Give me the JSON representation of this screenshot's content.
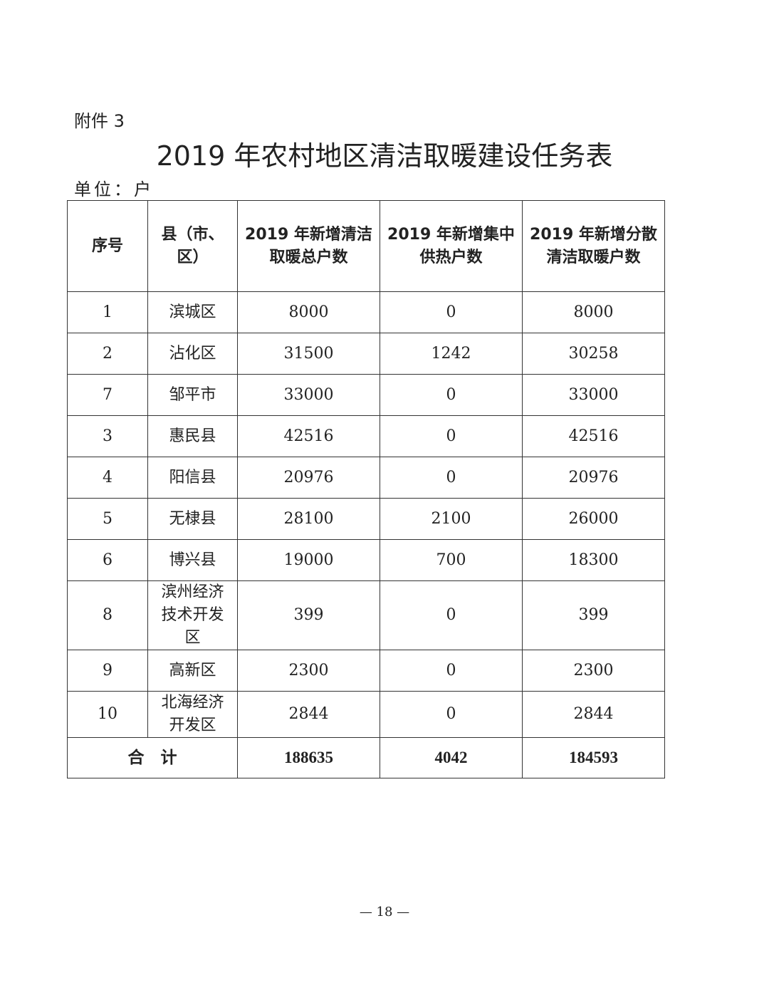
{
  "attachment": "附件 3",
  "title": "2019 年农村地区清洁取暖建设任务表",
  "unit": "单位：户",
  "table": {
    "headers": [
      "序号",
      "县（市、区）",
      "2019 年新增清洁取暖总户数",
      "2019 年新增集中供热户数",
      "2019 年新增分散清洁取暖户数"
    ],
    "rows": [
      [
        "1",
        "滨城区",
        "8000",
        "0",
        "8000"
      ],
      [
        "2",
        "沾化区",
        "31500",
        "1242",
        "30258"
      ],
      [
        "7",
        "邹平市",
        "33000",
        "0",
        "33000"
      ],
      [
        "3",
        "惠民县",
        "42516",
        "0",
        "42516"
      ],
      [
        "4",
        "阳信县",
        "20976",
        "0",
        "20976"
      ],
      [
        "5",
        "无棣县",
        "28100",
        "2100",
        "26000"
      ],
      [
        "6",
        "博兴县",
        "19000",
        "700",
        "18300"
      ],
      [
        "8",
        "滨州经济技术开发区",
        "399",
        "0",
        "399"
      ],
      [
        "9",
        "高新区",
        "2300",
        "0",
        "2300"
      ],
      [
        "10",
        "北海经济开发区",
        "2844",
        "0",
        "2844"
      ]
    ],
    "total": {
      "label": "合　计",
      "values": [
        "188635",
        "4042",
        "184593"
      ]
    }
  },
  "page_number": "— 18 —"
}
